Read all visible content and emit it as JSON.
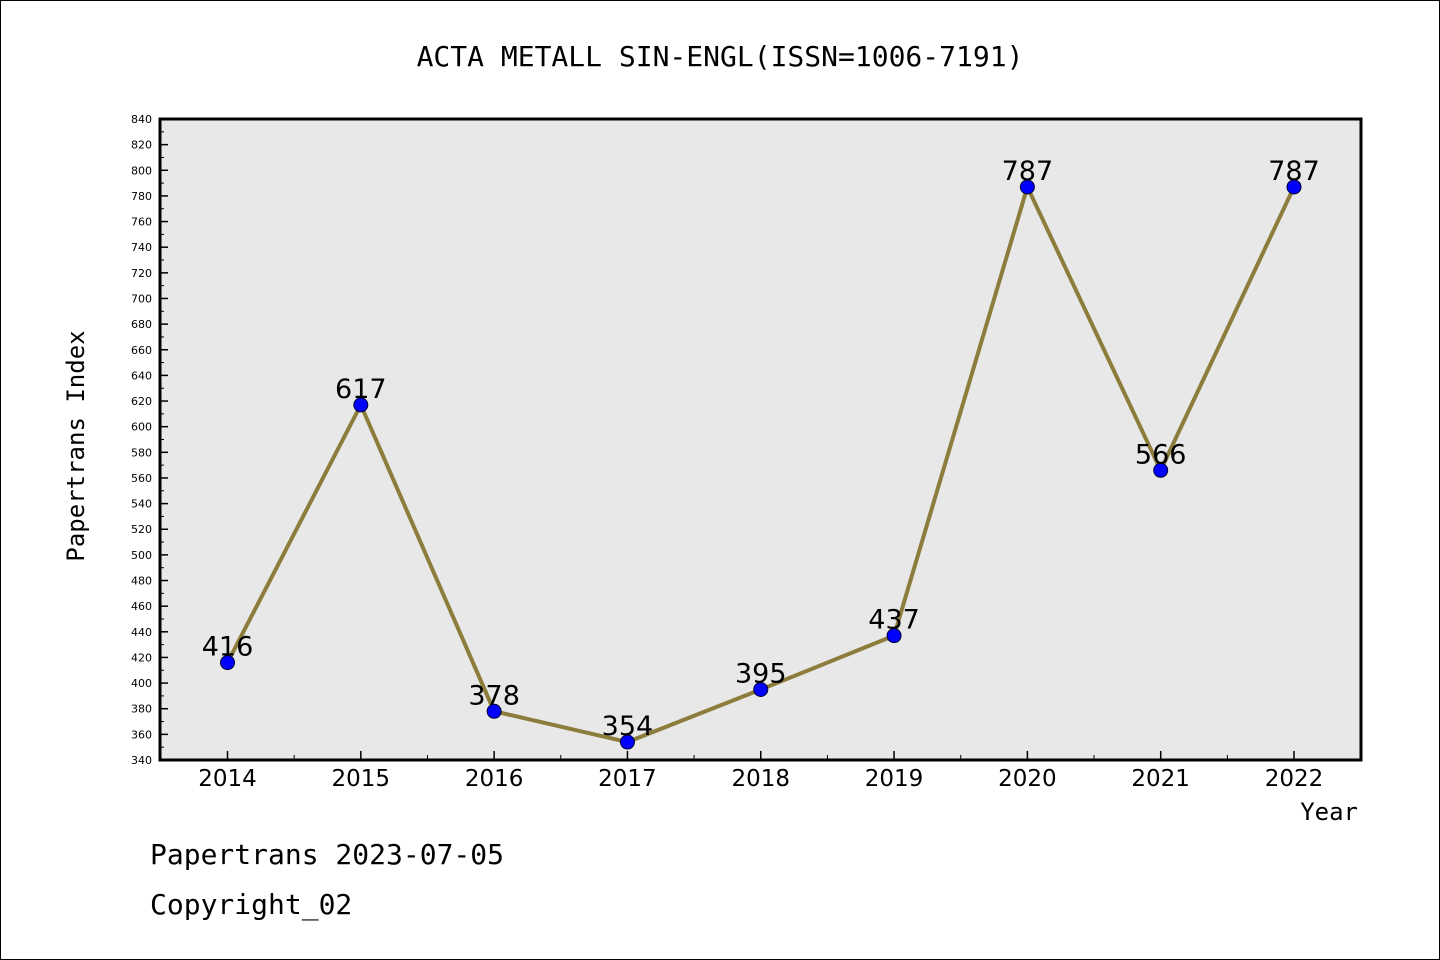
{
  "chart_data": {
    "type": "line",
    "title": "ACTA METALL SIN-ENGL(ISSN=1006-7191)",
    "xlabel": "Year",
    "ylabel": "Papertrans Index",
    "categories": [
      "2014",
      "2015",
      "2016",
      "2017",
      "2018",
      "2019",
      "2020",
      "2021",
      "2022"
    ],
    "values": [
      416,
      617,
      378,
      354,
      395,
      437,
      787,
      566,
      787
    ],
    "data_labels": [
      "416",
      "617",
      "378",
      "354",
      "395",
      "437",
      "787",
      "566",
      "787"
    ],
    "ylim": [
      340,
      840
    ],
    "yticks": [
      "340",
      "360",
      "380",
      "400",
      "420",
      "440",
      "460",
      "480",
      "500",
      "520",
      "540",
      "560",
      "580",
      "600",
      "620",
      "640",
      "660",
      "680",
      "700",
      "720",
      "740",
      "760",
      "780",
      "800",
      "820",
      "840"
    ],
    "grid": false,
    "legend": "none",
    "line_color": "#8c7d3c",
    "marker_color": "#0000ff",
    "plot_background": "#e8e8e8"
  },
  "footer": {
    "line1": "Papertrans 2023-07-05",
    "line2": "Copyright_02"
  }
}
